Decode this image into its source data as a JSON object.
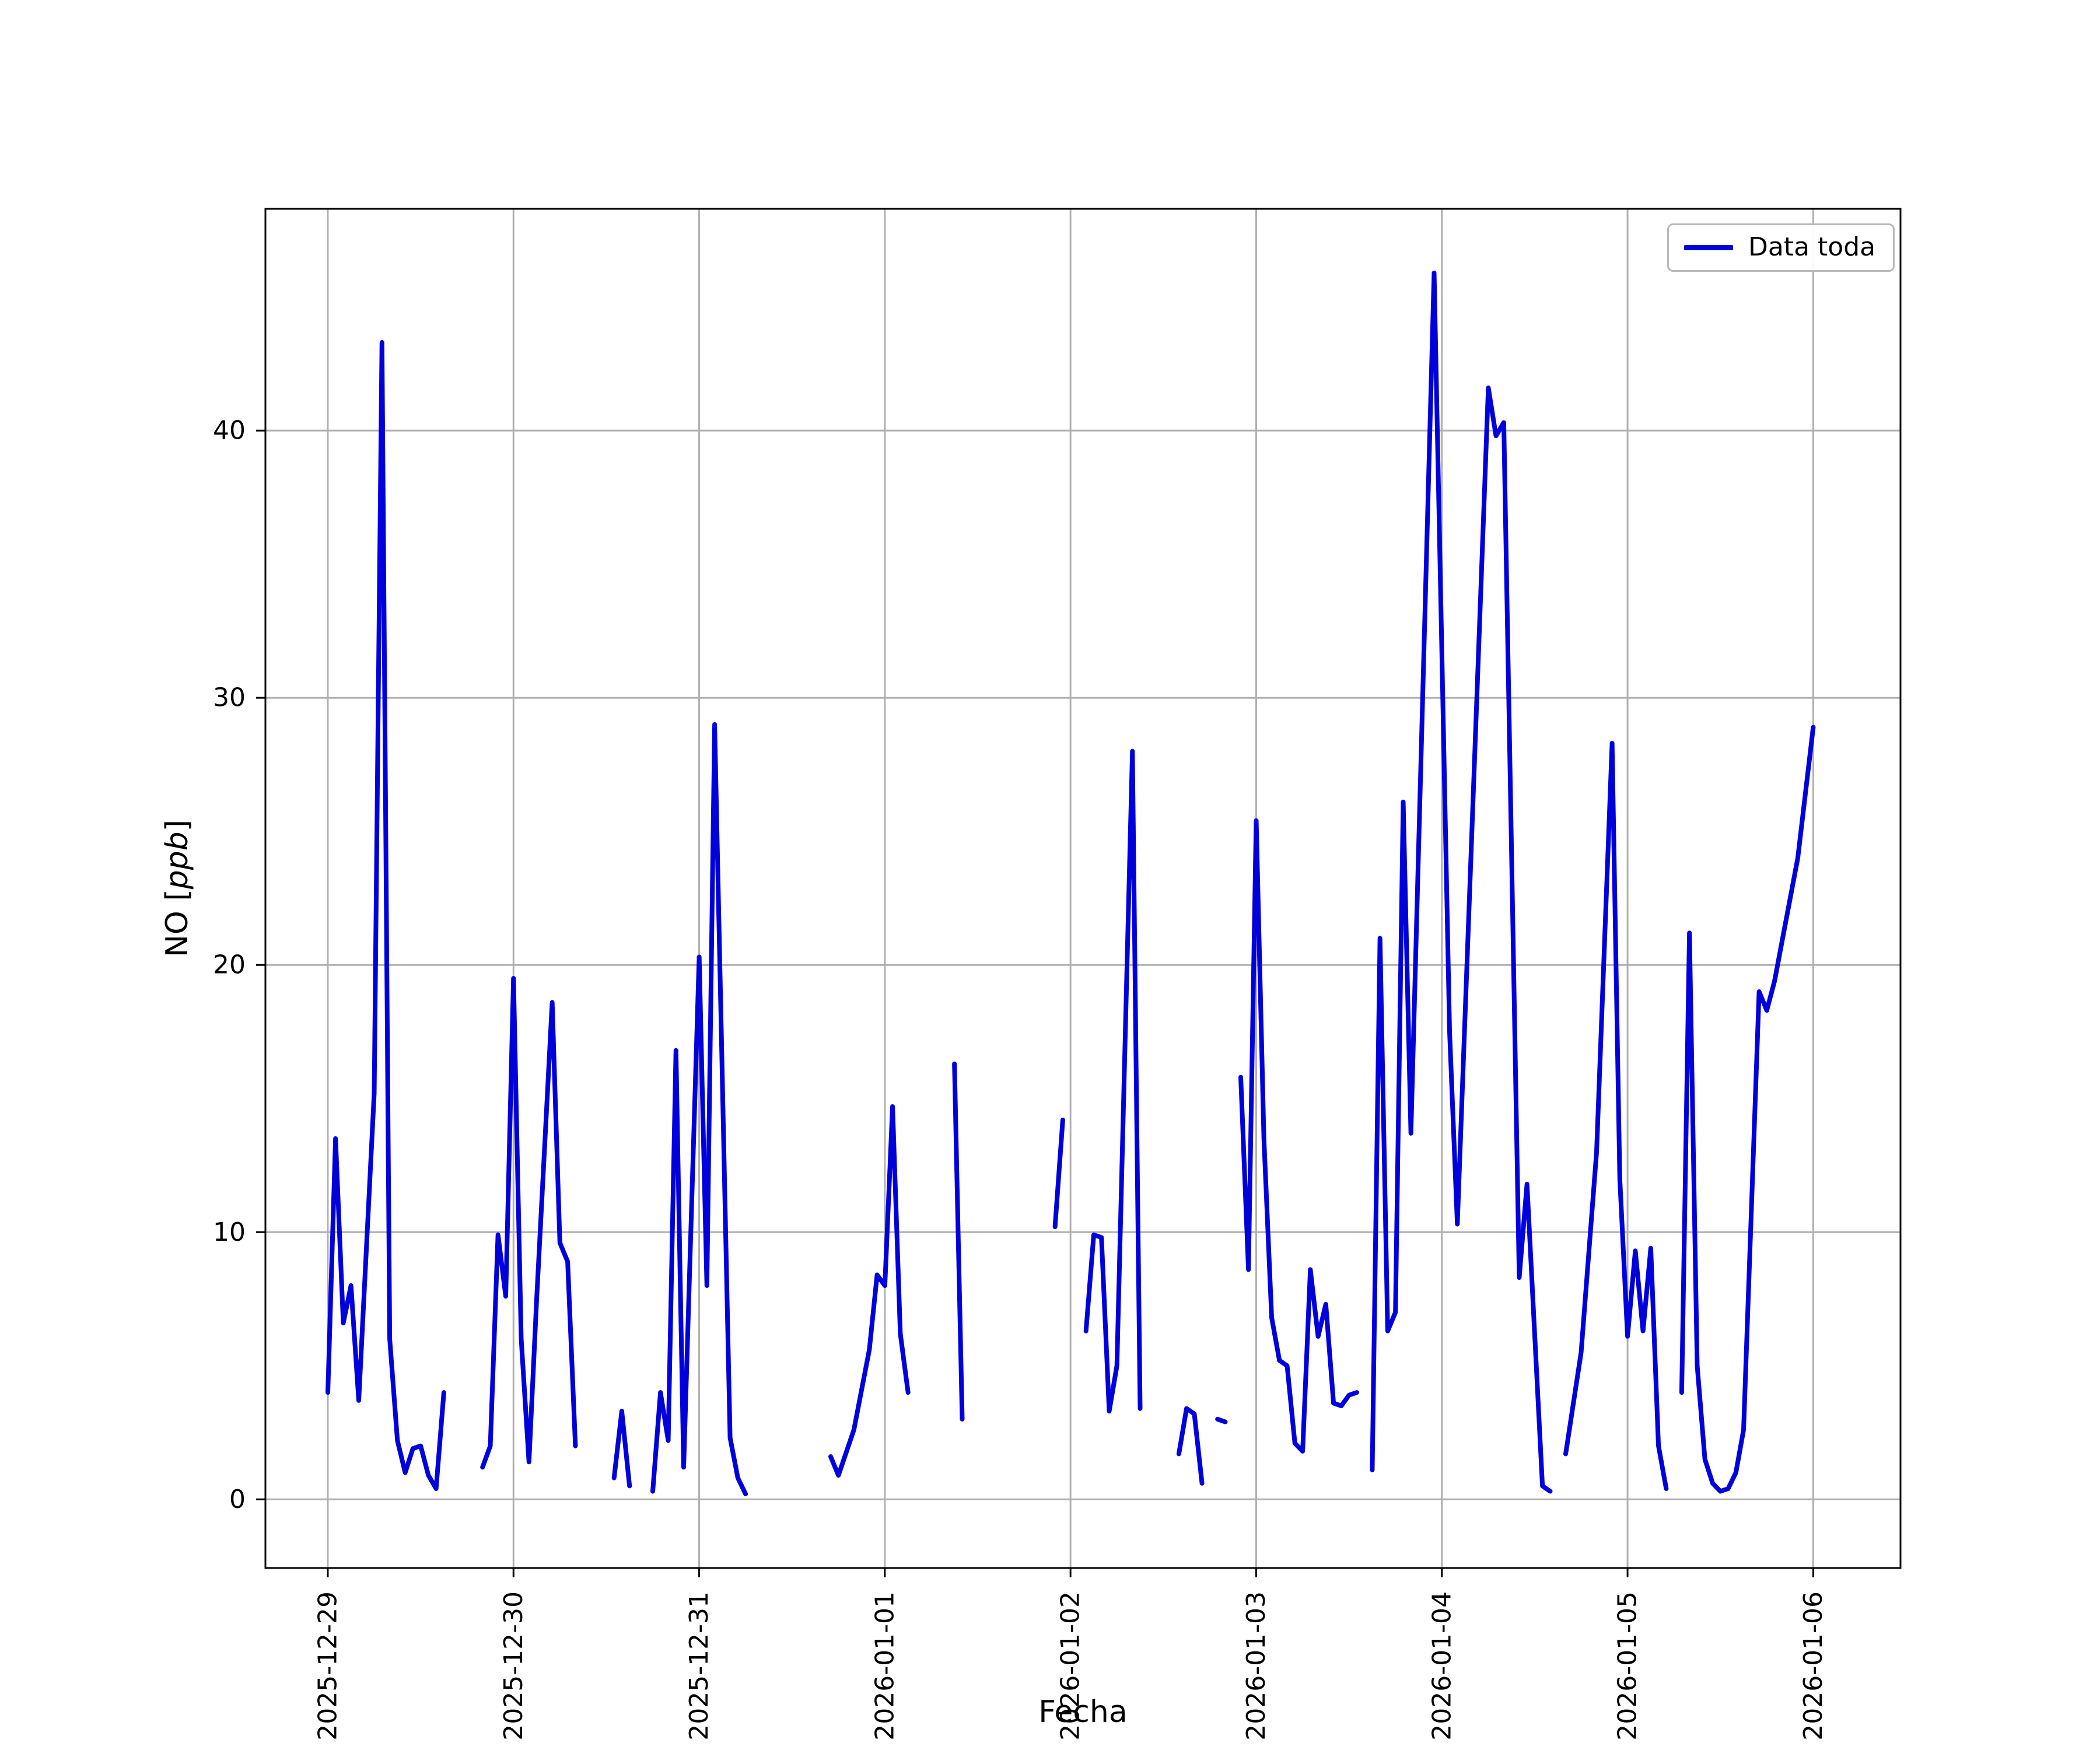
{
  "chart_data": {
    "type": "line",
    "title": "",
    "xlabel": "Fecha",
    "ylabel": "NO [ppb]",
    "ylabel_parts": {
      "prefix": "NO [",
      "unit": "ppb",
      "suffix": "]"
    },
    "legend": {
      "label": "Data toda",
      "position": "upper right"
    },
    "line_color": "#0000dd",
    "grid": true,
    "grid_color": "#b0b0b0",
    "spine_color": "#000000",
    "x_unit": "hours since 2025-12-29 00:00",
    "x_tick_days": [
      0,
      1,
      2,
      3,
      4,
      5,
      6,
      7,
      8
    ],
    "x_ticklabels": [
      "2025-12-29",
      "2025-12-30",
      "2025-12-31",
      "2026-01-01",
      "2026-01-02",
      "2026-01-03",
      "2026-01-04",
      "2026-01-05",
      "2026-01-06"
    ],
    "y_ticks": [
      0,
      10,
      20,
      30,
      40
    ],
    "y_ticklabels": [
      "0",
      "10",
      "20",
      "30",
      "40"
    ],
    "xlim_days": [
      -0.336,
      8.47
    ],
    "ylim": [
      -2.57,
      48.3
    ],
    "segments": [
      [
        [
          0,
          4.0
        ],
        [
          1,
          13.5
        ],
        [
          2,
          6.6
        ],
        [
          3,
          8.0
        ],
        [
          4,
          3.7
        ],
        [
          6,
          15.2
        ],
        [
          7,
          43.3
        ],
        [
          8,
          6.0
        ],
        [
          9,
          2.2
        ],
        [
          10,
          1.0
        ],
        [
          11,
          1.9
        ],
        [
          12,
          2.0
        ],
        [
          13,
          0.9
        ],
        [
          14,
          0.4
        ],
        [
          15,
          4.0
        ]
      ],
      [
        [
          20,
          1.2
        ],
        [
          21,
          2.0
        ],
        [
          22,
          9.9
        ],
        [
          23,
          7.6
        ],
        [
          24,
          19.5
        ],
        [
          25,
          6.0
        ],
        [
          26,
          1.4
        ],
        [
          27,
          7.5
        ],
        [
          29,
          18.6
        ],
        [
          30,
          9.6
        ],
        [
          31,
          8.9
        ],
        [
          32,
          2.0
        ]
      ],
      [
        [
          37,
          0.8
        ],
        [
          38,
          3.3
        ],
        [
          39,
          0.5
        ]
      ],
      [
        [
          42,
          0.3
        ],
        [
          43,
          4.0
        ],
        [
          44,
          2.2
        ],
        [
          45,
          16.8
        ],
        [
          46,
          1.2
        ],
        [
          48,
          20.3
        ],
        [
          49,
          8.0
        ],
        [
          50,
          29.0
        ],
        [
          52,
          2.3
        ],
        [
          53,
          0.8
        ],
        [
          54,
          0.2
        ]
      ],
      [
        [
          65,
          1.6
        ],
        [
          66,
          0.9
        ],
        [
          68,
          2.6
        ],
        [
          70,
          5.6
        ],
        [
          71,
          8.4
        ],
        [
          72,
          8.0
        ],
        [
          73,
          14.7
        ],
        [
          74,
          6.2
        ],
        [
          75,
          4.0
        ]
      ],
      [
        [
          81,
          16.3
        ],
        [
          82,
          3.0
        ]
      ],
      [
        [
          94,
          10.2
        ],
        [
          95,
          14.2
        ]
      ],
      [
        [
          98,
          6.3
        ],
        [
          99,
          9.9
        ],
        [
          100,
          9.8
        ],
        [
          101,
          3.3
        ],
        [
          102,
          5.0
        ],
        [
          104,
          28.0
        ],
        [
          105,
          3.4
        ]
      ],
      [
        [
          110,
          1.7
        ],
        [
          111,
          3.4
        ],
        [
          112,
          3.2
        ],
        [
          113,
          0.6
        ]
      ],
      [
        [
          115,
          3.0
        ],
        [
          116,
          2.9
        ]
      ],
      [
        [
          118,
          15.8
        ],
        [
          119,
          8.6
        ],
        [
          120,
          25.4
        ],
        [
          121,
          13.5
        ],
        [
          122,
          6.8
        ],
        [
          123,
          5.2
        ],
        [
          124,
          5.0
        ],
        [
          125,
          2.1
        ],
        [
          126,
          1.8
        ],
        [
          127,
          8.6
        ],
        [
          128,
          6.1
        ],
        [
          129,
          7.3
        ],
        [
          130,
          3.6
        ],
        [
          131,
          3.5
        ],
        [
          132,
          3.9
        ],
        [
          133,
          4.0
        ]
      ],
      [
        [
          135,
          1.1
        ],
        [
          136,
          21.0
        ],
        [
          137,
          6.3
        ],
        [
          138,
          7.0
        ],
        [
          139,
          26.1
        ],
        [
          140,
          13.7
        ],
        [
          143,
          45.9
        ],
        [
          145,
          17.5
        ],
        [
          146,
          10.3
        ],
        [
          150,
          41.6
        ],
        [
          151,
          39.8
        ],
        [
          152,
          40.3
        ],
        [
          154,
          8.3
        ],
        [
          155,
          11.8
        ],
        [
          157,
          0.5
        ],
        [
          158,
          0.3
        ]
      ],
      [
        [
          160,
          1.7
        ],
        [
          162,
          5.5
        ],
        [
          164,
          13.0
        ],
        [
          166,
          28.3
        ],
        [
          167,
          12.0
        ],
        [
          168,
          6.1
        ],
        [
          169,
          9.3
        ],
        [
          170,
          6.3
        ],
        [
          171,
          9.4
        ],
        [
          172,
          2.0
        ],
        [
          173,
          0.4
        ]
      ],
      [
        [
          175,
          4.0
        ],
        [
          176,
          21.2
        ],
        [
          177,
          5.0
        ],
        [
          178,
          1.5
        ],
        [
          179,
          0.6
        ],
        [
          180,
          0.3
        ],
        [
          181,
          0.4
        ],
        [
          182,
          1.0
        ],
        [
          183,
          2.6
        ],
        [
          185,
          19.0
        ],
        [
          186,
          18.3
        ],
        [
          187,
          19.4
        ],
        [
          190,
          24.0
        ],
        [
          192,
          28.9
        ]
      ]
    ]
  }
}
